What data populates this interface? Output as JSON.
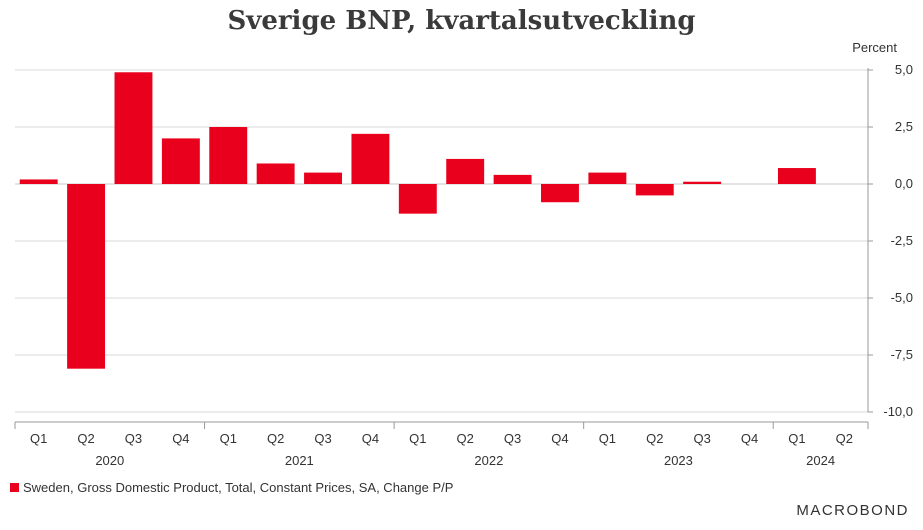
{
  "title": "Sverige BNP, kvartalsutveckling",
  "brand": "MACROBOND",
  "colors": {
    "bar": "#e8001c",
    "grid": "#d9d9d9",
    "axis": "#999999"
  },
  "chart_data": {
    "type": "bar",
    "title": "Sverige BNP, kvartalsutveckling",
    "unit_label": "Percent",
    "ylim": [
      -10,
      5
    ],
    "yticks": [
      5,
      2.5,
      0,
      -2.5,
      -5,
      -7.5,
      -10
    ],
    "ytick_labels": [
      "5,0",
      "2,5",
      "0,0",
      "-2,5",
      "-5,0",
      "-7,5",
      "-10,0"
    ],
    "y_axis_position": "right",
    "grid": true,
    "categories": [
      "Q1",
      "Q2",
      "Q3",
      "Q4",
      "Q1",
      "Q2",
      "Q3",
      "Q4",
      "Q1",
      "Q2",
      "Q3",
      "Q4",
      "Q1",
      "Q2",
      "Q3",
      "Q4",
      "Q1",
      "Q2"
    ],
    "years": [
      {
        "label": "2020",
        "start": 0,
        "count": 4
      },
      {
        "label": "2021",
        "start": 4,
        "count": 4
      },
      {
        "label": "2022",
        "start": 8,
        "count": 4
      },
      {
        "label": "2023",
        "start": 12,
        "count": 4
      },
      {
        "label": "2024",
        "start": 16,
        "count": 2
      }
    ],
    "series": [
      {
        "name": "Sweden, Gross Domestic Product, Total, Constant Prices, SA, Change P/P",
        "values": [
          0.2,
          -8.1,
          4.9,
          2.0,
          2.5,
          0.9,
          0.5,
          2.2,
          -1.3,
          1.1,
          0.4,
          -0.8,
          0.5,
          -0.5,
          0.1,
          0.0,
          0.7,
          null
        ]
      }
    ],
    "legend_position": "bottom-left"
  }
}
